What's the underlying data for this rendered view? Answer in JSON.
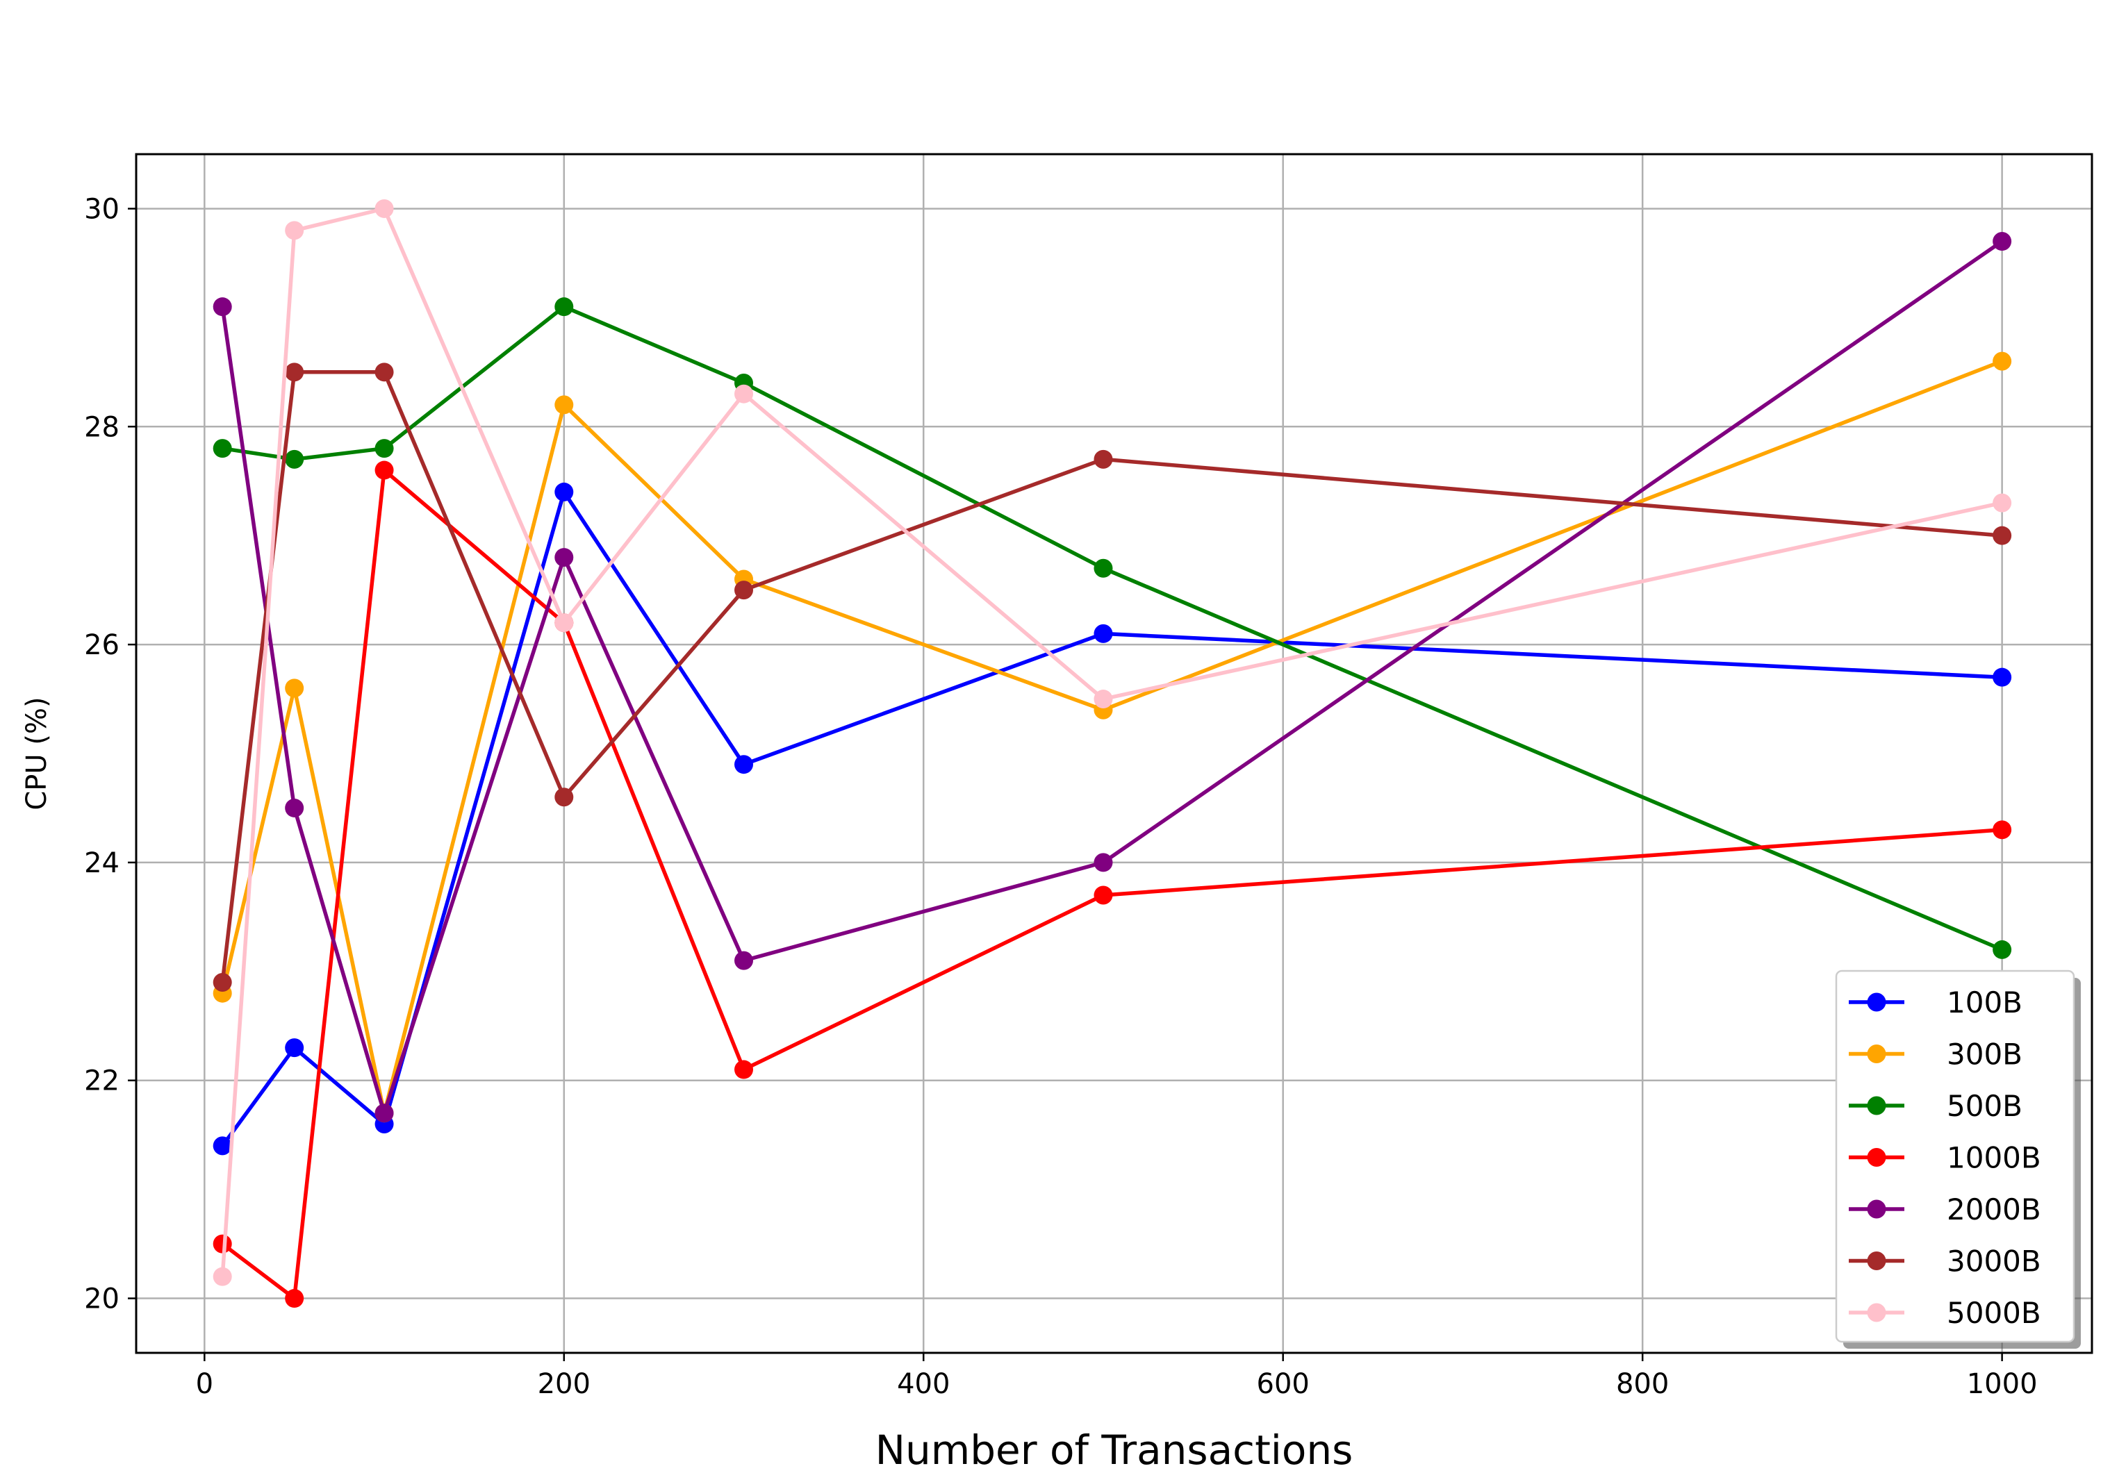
{
  "chart_data": {
    "type": "line",
    "title": "",
    "xlabel": "Number of Transactions",
    "ylabel": "CPU (%)",
    "xlim": [
      -38,
      1050
    ],
    "ylim": [
      19.5,
      30.5
    ],
    "xticks": [
      0,
      200,
      400,
      600,
      800,
      1000
    ],
    "yticks": [
      20,
      22,
      24,
      26,
      28,
      30
    ],
    "grid": true,
    "legend_position": "lower-right",
    "x": [
      10,
      50,
      100,
      200,
      300,
      500,
      1000
    ],
    "series": [
      {
        "name": "100B",
        "color": "#0000ff",
        "values": [
          21.4,
          22.3,
          21.6,
          27.4,
          24.9,
          26.1,
          25.7
        ]
      },
      {
        "name": "300B",
        "color": "#ffa500",
        "values": [
          22.8,
          25.6,
          21.7,
          28.2,
          26.6,
          25.4,
          28.6
        ]
      },
      {
        "name": "500B",
        "color": "#008000",
        "values": [
          27.8,
          27.7,
          27.8,
          29.1,
          28.4,
          26.7,
          23.2
        ]
      },
      {
        "name": "1000B",
        "color": "#ff0000",
        "values": [
          20.5,
          20.0,
          27.6,
          26.2,
          22.1,
          23.7,
          24.3
        ]
      },
      {
        "name": "2000B",
        "color": "#800080",
        "values": [
          29.1,
          24.5,
          21.7,
          26.8,
          23.1,
          24.0,
          29.7
        ]
      },
      {
        "name": "3000B",
        "color": "#a52a2a",
        "values": [
          22.9,
          28.5,
          28.5,
          24.6,
          26.5,
          27.7,
          27.0
        ]
      },
      {
        "name": "5000B",
        "color": "#ffc0cb",
        "values": [
          20.2,
          29.8,
          30.0,
          26.2,
          28.3,
          25.5,
          27.3
        ]
      }
    ]
  }
}
